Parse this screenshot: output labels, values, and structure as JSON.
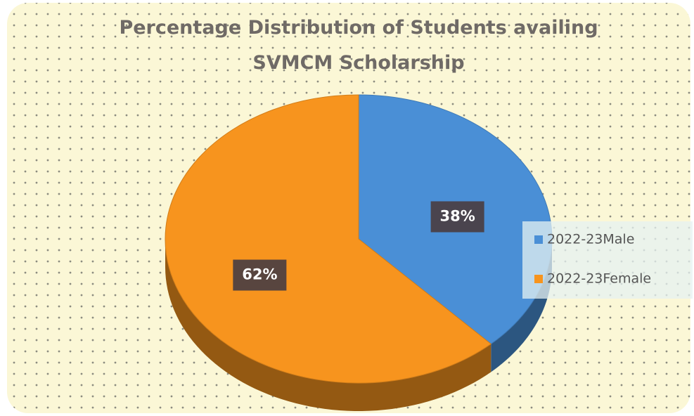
{
  "chart_data": {
    "type": "pie",
    "title_lines": [
      "Percentage Distribution of Students availing",
      "SVMCM Scholarship"
    ],
    "categories": [
      "2022-23Male",
      "2022-23Female"
    ],
    "values": [
      38,
      62
    ],
    "value_labels": [
      "38%",
      "62%"
    ],
    "colors": [
      "#4a8fd6",
      "#f7941e"
    ],
    "legend": "right"
  }
}
